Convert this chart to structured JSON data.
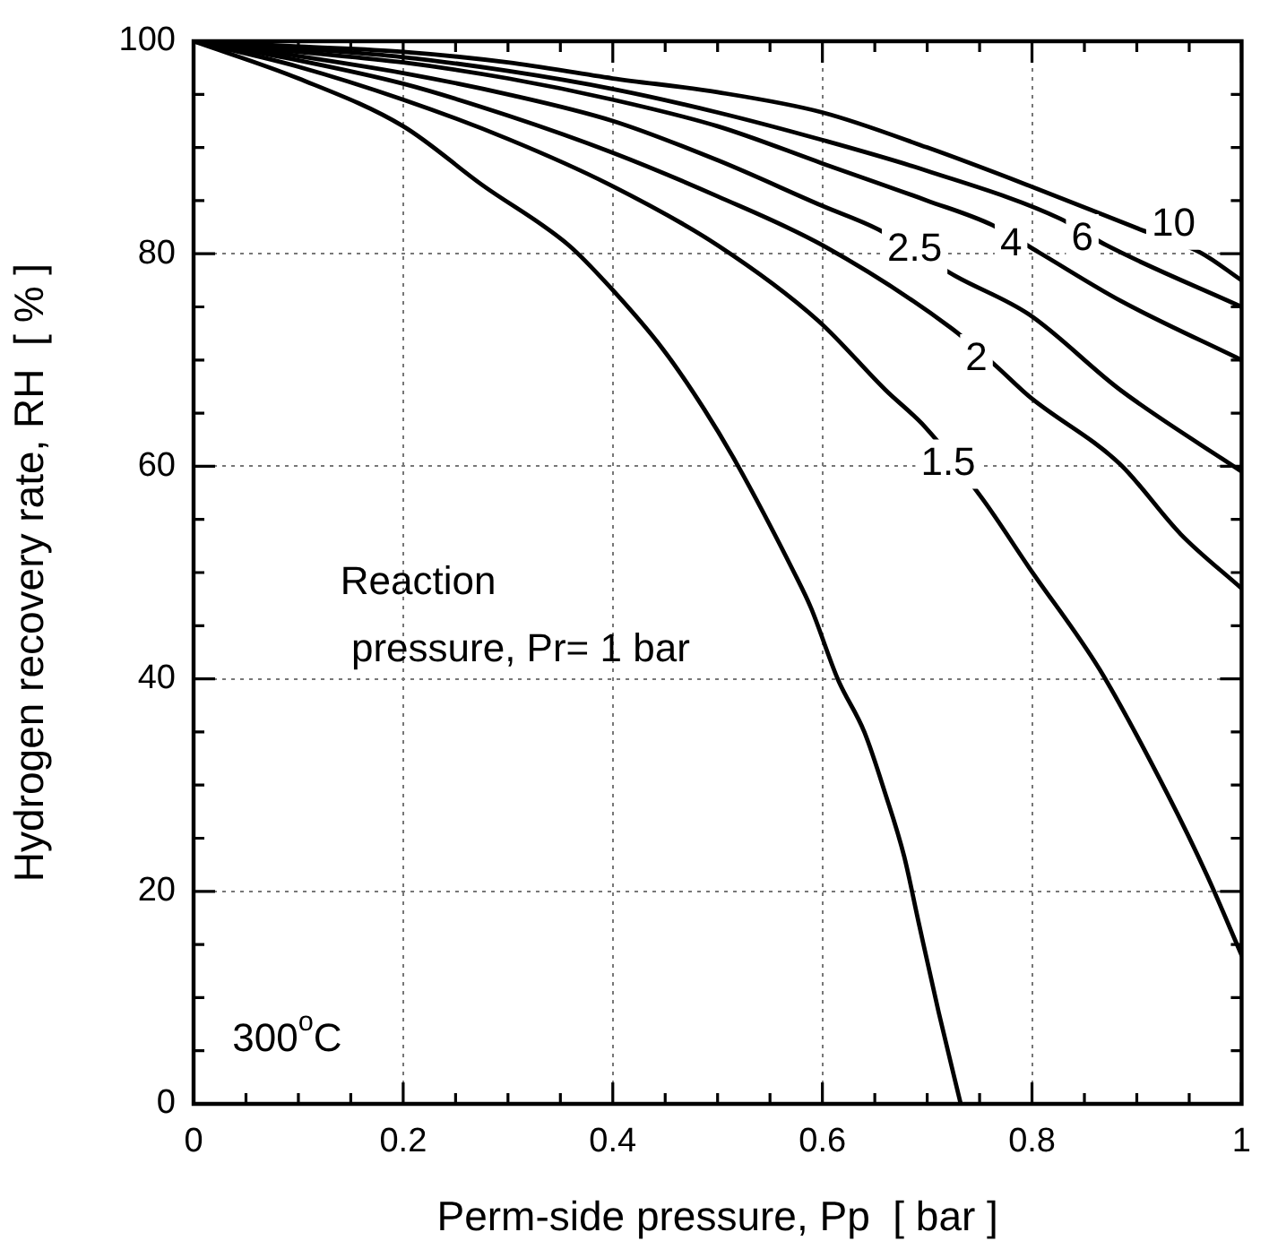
{
  "chart_data": {
    "type": "line",
    "xlabel": "Perm-side pressure, Pp  [ bar ]",
    "ylabel": "Hydrogen recovery rate, RH  [ % ]",
    "xlim": [
      0,
      1
    ],
    "ylim": [
      0,
      100
    ],
    "xticks": [
      0,
      {
        "value": 0.05,
        "label": null
      },
      {
        "value": 0.1,
        "label": null
      },
      {
        "value": 0.15,
        "label": null
      },
      0.2,
      {
        "value": 0.25,
        "label": null
      },
      {
        "value": 0.3,
        "label": null
      },
      {
        "value": 0.35,
        "label": null
      },
      0.4,
      {
        "value": 0.45,
        "label": null
      },
      {
        "value": 0.5,
        "label": null
      },
      {
        "value": 0.55,
        "label": null
      },
      0.6,
      {
        "value": 0.65,
        "label": null
      },
      {
        "value": 0.7,
        "label": null
      },
      {
        "value": 0.75,
        "label": null
      },
      0.8,
      {
        "value": 0.85,
        "label": null
      },
      {
        "value": 0.9,
        "label": null
      },
      {
        "value": 0.95,
        "label": null
      },
      1
    ],
    "yticks": [
      0,
      {
        "value": 5,
        "label": null
      },
      {
        "value": 10,
        "label": null
      },
      {
        "value": 15,
        "label": null
      },
      20,
      {
        "value": 25,
        "label": null
      },
      {
        "value": 30,
        "label": null
      },
      {
        "value": 35,
        "label": null
      },
      40,
      {
        "value": 45,
        "label": null
      },
      {
        "value": 50,
        "label": null
      },
      {
        "value": 55,
        "label": null
      },
      60,
      {
        "value": 65,
        "label": null
      },
      {
        "value": 70,
        "label": null
      },
      {
        "value": 75,
        "label": null
      },
      80,
      {
        "value": 85,
        "label": null
      },
      {
        "value": 90,
        "label": null
      },
      {
        "value": 95,
        "label": null
      },
      100
    ],
    "grid": true,
    "legend": false,
    "marker": "none",
    "line_style": "solid",
    "series": [
      {
        "color": "#000000",
        "x": [
          0,
          0.1,
          0.2,
          0.275,
          0.358,
          0.397,
          0.448,
          0.487,
          0.518,
          0.573,
          0.589,
          0.615,
          0.64,
          0.66,
          0.678,
          0.692,
          0.711,
          0.732
        ],
        "values": [
          100,
          96.5,
          92,
          86.5,
          80.8,
          76.9,
          71,
          65.4,
          60.3,
          50,
          46.7,
          39.9,
          35,
          29.2,
          23.3,
          17,
          8.6,
          0
        ]
      },
      {
        "color": "#000000",
        "x": [
          0,
          0.1,
          0.2,
          0.3,
          0.397,
          0.5,
          0.596,
          0.66,
          0.698,
          0.753,
          0.797,
          0.865,
          0.929,
          0.967,
          1
        ],
        "values": [
          100,
          97.6,
          94.5,
          90.8,
          86.5,
          80.8,
          73.7,
          67.2,
          63.7,
          56.9,
          50.5,
          40.8,
          29.2,
          21.5,
          14
        ]
      },
      {
        "color": "#000000",
        "x": [
          0,
          0.1,
          0.2,
          0.3,
          0.4,
          0.5,
          0.6,
          0.723,
          0.765,
          0.797,
          0.884,
          0.942,
          1
        ],
        "values": [
          100,
          98.2,
          96,
          93,
          89.5,
          85.4,
          80.8,
          73,
          69.5,
          66.6,
          60.2,
          53.6,
          48.5
        ]
      },
      {
        "color": "#000000",
        "x": [
          0,
          0.1,
          0.2,
          0.3,
          0.4,
          0.5,
          0.6,
          0.653,
          0.727,
          0.797,
          0.884,
          1
        ],
        "values": [
          100,
          98.6,
          97,
          95,
          92.5,
          88.8,
          84.5,
          82.3,
          77.9,
          74.3,
          67.2,
          59.5
        ]
      },
      {
        "color": "#000000",
        "x": [
          0,
          0.1,
          0.2,
          0.3,
          0.4,
          0.5,
          0.6,
          0.7,
          0.762,
          0.807,
          0.884,
          1
        ],
        "values": [
          100,
          99,
          98,
          96.5,
          94.5,
          92,
          88.5,
          85,
          82.7,
          80.1,
          75.6,
          70
        ]
      },
      {
        "color": "#000000",
        "x": [
          0,
          0.1,
          0.2,
          0.3,
          0.4,
          0.5,
          0.6,
          0.7,
          0.827,
          0.871,
          1
        ],
        "values": [
          100,
          99.3,
          98.5,
          97.2,
          95.5,
          93.3,
          90.7,
          87.8,
          83.3,
          80.8,
          75
        ]
      },
      {
        "color": "#000000",
        "x": [
          0,
          0.1,
          0.2,
          0.3,
          0.4,
          0.5,
          0.6,
          0.7,
          0.8,
          0.903,
          0.961,
          1
        ],
        "values": [
          100,
          99.5,
          99,
          98,
          96.5,
          95.2,
          93.3,
          90,
          86.3,
          82.3,
          80.1,
          77.5
        ]
      }
    ],
    "annotations": [
      {
        "text": "10",
        "x": 0.935,
        "y": 82.7
      },
      {
        "text": "6",
        "x": 0.848,
        "y": 81.4
      },
      {
        "text": "4",
        "x": 0.78,
        "y": 80.9
      },
      {
        "text": "2.5",
        "x": 0.688,
        "y": 80.4
      },
      {
        "text": "2",
        "x": 0.747,
        "y": 70.1
      },
      {
        "text": "1.5",
        "x": 0.72,
        "y": 60.2
      },
      "Reaction\n pressure, Pr= 1 bar",
      "300$^{o}$C"
    ]
  }
}
